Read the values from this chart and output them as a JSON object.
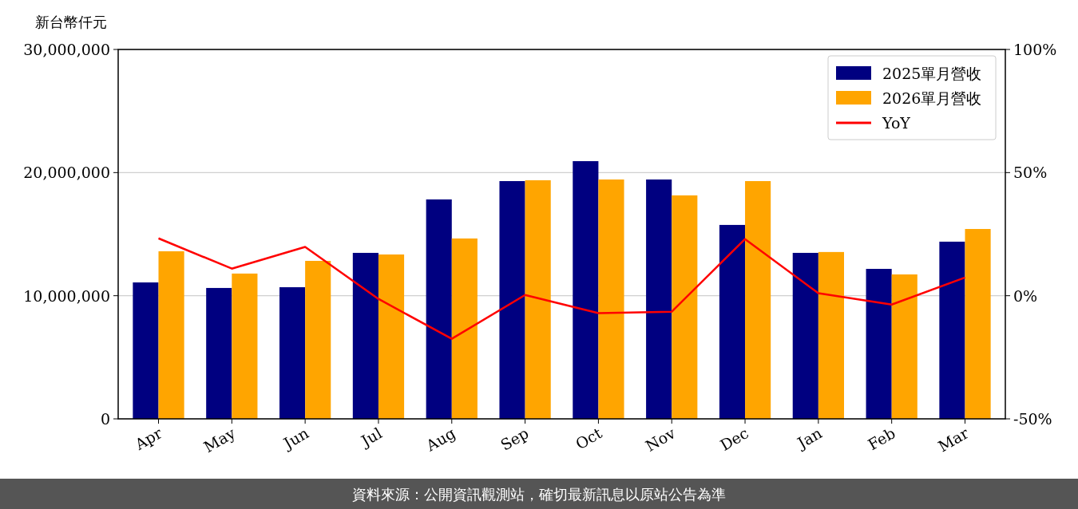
{
  "chart_data": {
    "type": "bar",
    "ylabel": "新台幣仟元",
    "categories": [
      "Apr",
      "May",
      "Jun",
      "Jul",
      "Aug",
      "Sep",
      "Oct",
      "Nov",
      "Dec",
      "Jan",
      "Feb",
      "Mar"
    ],
    "series": [
      {
        "name": "2025單月營收",
        "color": "#000080",
        "values": [
          11080000,
          10630000,
          10690000,
          13480000,
          17820000,
          19310000,
          20930000,
          19440000,
          15750000,
          13480000,
          12180000,
          14390000
        ]
      },
      {
        "name": "2026單月營收",
        "color": "#ffa500",
        "values": [
          13610000,
          11800000,
          12830000,
          13350000,
          14650000,
          19380000,
          19440000,
          18150000,
          19310000,
          13550000,
          11730000,
          15420000
        ]
      },
      {
        "name": "YoY",
        "type": "line",
        "axis": "y2",
        "color": "#ff0000",
        "values": [
          23.3,
          11.0,
          19.8,
          -1.3,
          -17.5,
          0.3,
          -7.1,
          -6.5,
          23.0,
          1.0,
          -3.6,
          7.4
        ]
      }
    ],
    "ylim": [
      0,
      30000000
    ],
    "yticks": [
      {
        "value": 0,
        "label": "0"
      },
      {
        "value": 10000000,
        "label": "10,000,000"
      },
      {
        "value": 20000000,
        "label": "20,000,000"
      },
      {
        "value": 30000000,
        "label": "30,000,000"
      }
    ],
    "y2lim": [
      -50,
      100
    ],
    "y2ticks": [
      {
        "value": -50,
        "label": "-50%"
      },
      {
        "value": 0,
        "label": "0%"
      },
      {
        "value": 50,
        "label": "50%"
      },
      {
        "value": 100,
        "label": "100%"
      }
    ],
    "grid": "y",
    "legend": "top right",
    "marker": "none",
    "annotations": [
      "資料來源：公開資訊觀測站，確切最新訊息以原站公告為準"
    ]
  }
}
